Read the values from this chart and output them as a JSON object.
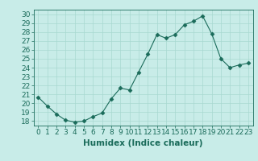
{
  "title": "",
  "xlabel": "Humidex (Indice chaleur)",
  "x": [
    0,
    1,
    2,
    3,
    4,
    5,
    6,
    7,
    8,
    9,
    10,
    11,
    12,
    13,
    14,
    15,
    16,
    17,
    18,
    19,
    20,
    21,
    22,
    23
  ],
  "y": [
    20.7,
    19.7,
    18.8,
    18.1,
    17.9,
    18.0,
    18.5,
    18.9,
    20.5,
    21.7,
    21.5,
    23.5,
    25.5,
    27.7,
    27.3,
    27.7,
    28.8,
    29.2,
    29.8,
    27.8,
    25.0,
    24.0,
    24.3,
    24.5
  ],
  "line_color": "#1a6b5a",
  "marker": "D",
  "marker_size": 2.5,
  "background_color": "#c8ece8",
  "grid_color": "#a8d8d0",
  "ylim": [
    17.5,
    30.5
  ],
  "yticks": [
    18,
    19,
    20,
    21,
    22,
    23,
    24,
    25,
    26,
    27,
    28,
    29,
    30
  ],
  "xlim": [
    -0.5,
    23.5
  ],
  "tick_fontsize": 6.5,
  "label_fontsize": 7.5
}
